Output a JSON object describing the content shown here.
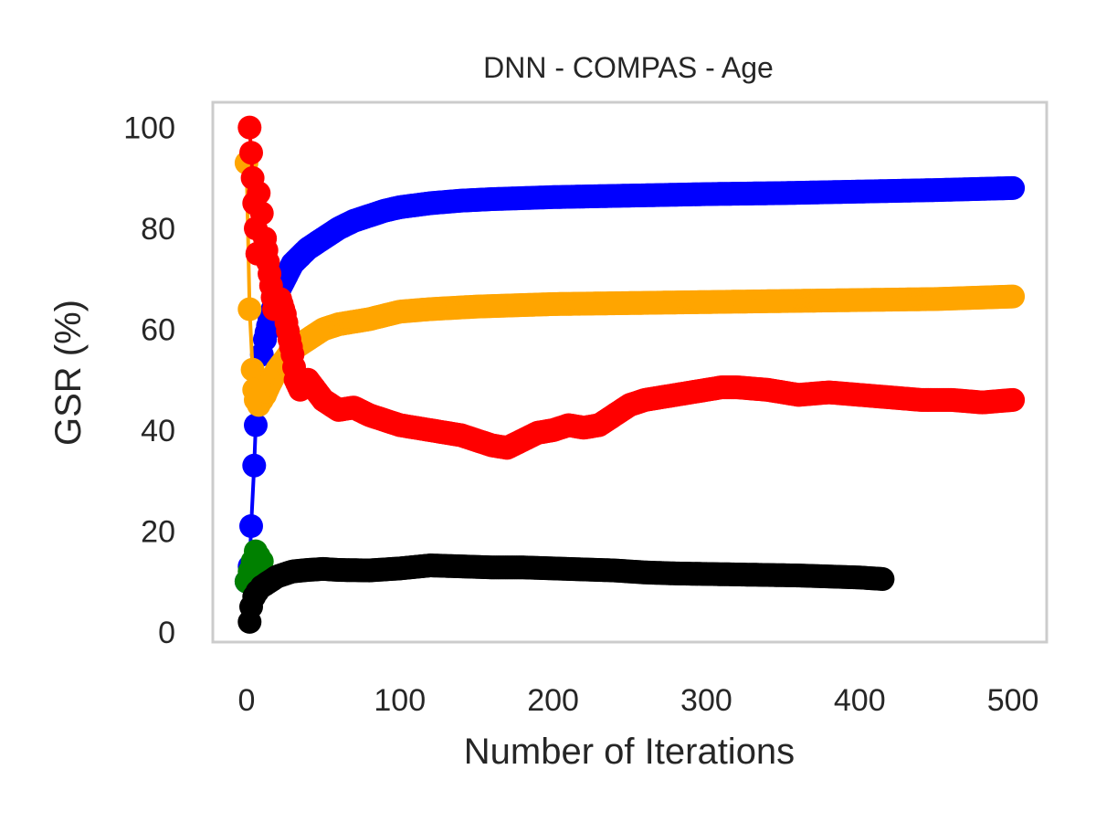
{
  "chart_data": {
    "type": "line",
    "title": "DNN - COMPAS - Age",
    "xlabel": "Number of Iterations",
    "ylabel": "GSR (%)",
    "xlim": [
      -22,
      522
    ],
    "ylim": [
      -2,
      105
    ],
    "xticks": [
      0,
      100,
      200,
      300,
      400,
      500
    ],
    "yticks": [
      0,
      20,
      40,
      60,
      80,
      100
    ],
    "grid": false,
    "legend": "none",
    "series": [
      {
        "color": "#0000ff",
        "x_end": 500,
        "points": [
          [
            0,
            10
          ],
          [
            2,
            13
          ],
          [
            3,
            21
          ],
          [
            5,
            33
          ],
          [
            6,
            41
          ],
          [
            8,
            49
          ],
          [
            10,
            55
          ],
          [
            12,
            58
          ],
          [
            15,
            62
          ],
          [
            20,
            67
          ],
          [
            25,
            70
          ],
          [
            30,
            73
          ],
          [
            40,
            76
          ],
          [
            50,
            78
          ],
          [
            60,
            80
          ],
          [
            70,
            81.5
          ],
          [
            80,
            82.5
          ],
          [
            90,
            83.5
          ],
          [
            100,
            84.2
          ],
          [
            120,
            85
          ],
          [
            140,
            85.5
          ],
          [
            160,
            85.8
          ],
          [
            200,
            86.2
          ],
          [
            250,
            86.5
          ],
          [
            300,
            86.8
          ],
          [
            350,
            87
          ],
          [
            400,
            87.3
          ],
          [
            450,
            87.6
          ],
          [
            500,
            88
          ]
        ]
      },
      {
        "color": "#ffa500",
        "x_end": 500,
        "points": [
          [
            0,
            93
          ],
          [
            2,
            64
          ],
          [
            4,
            52
          ],
          [
            5,
            48
          ],
          [
            6,
            46
          ],
          [
            8,
            45
          ],
          [
            10,
            46
          ],
          [
            12,
            47
          ],
          [
            15,
            49
          ],
          [
            20,
            52
          ],
          [
            25,
            54
          ],
          [
            30,
            56
          ],
          [
            40,
            58
          ],
          [
            50,
            60
          ],
          [
            60,
            61
          ],
          [
            80,
            62
          ],
          [
            100,
            63.5
          ],
          [
            120,
            64
          ],
          [
            150,
            64.5
          ],
          [
            200,
            65
          ],
          [
            250,
            65.2
          ],
          [
            300,
            65.4
          ],
          [
            350,
            65.6
          ],
          [
            400,
            65.8
          ],
          [
            450,
            66
          ],
          [
            500,
            66.5
          ]
        ]
      },
      {
        "color": "#ff0000",
        "x_end": 500,
        "points": [
          [
            2,
            100
          ],
          [
            3,
            95
          ],
          [
            4,
            90
          ],
          [
            5,
            85
          ],
          [
            6,
            80
          ],
          [
            7,
            75
          ],
          [
            8,
            87
          ],
          [
            10,
            83
          ],
          [
            12,
            78
          ],
          [
            15,
            71
          ],
          [
            18,
            64
          ],
          [
            20,
            66
          ],
          [
            22,
            66
          ],
          [
            25,
            63
          ],
          [
            28,
            58
          ],
          [
            30,
            55
          ],
          [
            32,
            50
          ],
          [
            35,
            48
          ],
          [
            40,
            50
          ],
          [
            50,
            46
          ],
          [
            60,
            44
          ],
          [
            70,
            44.5
          ],
          [
            80,
            43
          ],
          [
            90,
            42
          ],
          [
            100,
            41
          ],
          [
            110,
            40.5
          ],
          [
            120,
            40
          ],
          [
            130,
            39.5
          ],
          [
            140,
            39
          ],
          [
            150,
            38
          ],
          [
            160,
            37
          ],
          [
            170,
            36.5
          ],
          [
            180,
            38
          ],
          [
            190,
            39.5
          ],
          [
            200,
            40
          ],
          [
            210,
            41
          ],
          [
            220,
            40.5
          ],
          [
            230,
            41
          ],
          [
            240,
            43
          ],
          [
            250,
            45
          ],
          [
            260,
            46
          ],
          [
            270,
            46.5
          ],
          [
            280,
            47
          ],
          [
            290,
            47.5
          ],
          [
            300,
            48
          ],
          [
            310,
            48.5
          ],
          [
            320,
            48.5
          ],
          [
            340,
            48
          ],
          [
            360,
            47
          ],
          [
            380,
            47.5
          ],
          [
            400,
            47
          ],
          [
            420,
            46.5
          ],
          [
            440,
            46
          ],
          [
            460,
            46
          ],
          [
            480,
            45.5
          ],
          [
            500,
            46
          ]
        ]
      },
      {
        "color": "#008000",
        "x_end": 10,
        "points": [
          [
            0,
            10
          ],
          [
            2,
            12
          ],
          [
            4,
            14
          ],
          [
            6,
            16
          ],
          [
            8,
            15
          ],
          [
            10,
            14
          ]
        ]
      },
      {
        "color": "#000000",
        "x_end": 415,
        "points": [
          [
            2,
            2
          ],
          [
            3,
            5
          ],
          [
            5,
            7
          ],
          [
            7,
            8
          ],
          [
            10,
            9
          ],
          [
            15,
            10
          ],
          [
            20,
            11
          ],
          [
            30,
            12
          ],
          [
            40,
            12.3
          ],
          [
            50,
            12.5
          ],
          [
            60,
            12.3
          ],
          [
            80,
            12.2
          ],
          [
            100,
            12.6
          ],
          [
            120,
            13.2
          ],
          [
            140,
            13
          ],
          [
            160,
            12.8
          ],
          [
            180,
            12.8
          ],
          [
            200,
            12.6
          ],
          [
            220,
            12.4
          ],
          [
            240,
            12.2
          ],
          [
            260,
            11.8
          ],
          [
            280,
            11.6
          ],
          [
            300,
            11.5
          ],
          [
            320,
            11.4
          ],
          [
            340,
            11.3
          ],
          [
            360,
            11.2
          ],
          [
            380,
            11
          ],
          [
            400,
            10.8
          ],
          [
            415,
            10.5
          ]
        ]
      }
    ]
  }
}
